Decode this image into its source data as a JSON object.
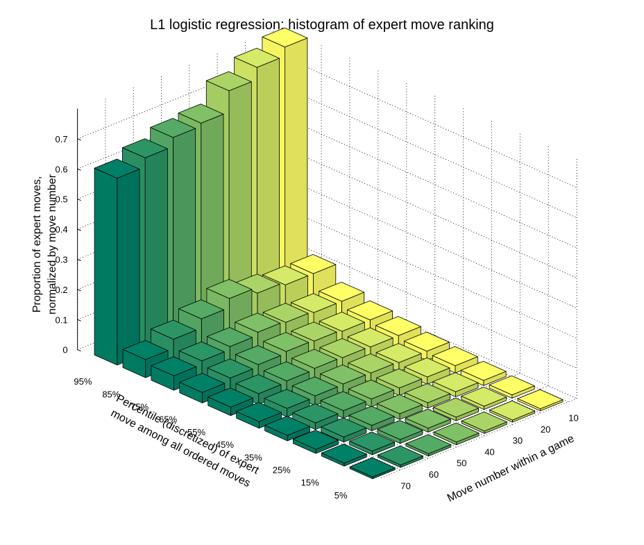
{
  "chart_data": {
    "type": "bar3d",
    "title": "L1 logistic regression: histogram of expert move ranking",
    "zlabel": [
      "Proportion of expert moves,",
      "normalized by move number"
    ],
    "xlabel": [
      "Percentile (discretized) of expert",
      "move among all ordered moves"
    ],
    "ylabel": "Move number within a game",
    "percentile_labels": [
      "95%",
      "85%",
      "75%",
      "65%",
      "55%",
      "45%",
      "35%",
      "25%",
      "15%",
      "5%"
    ],
    "move_number_labels": [
      "10",
      "20",
      "30",
      "40",
      "50",
      "60",
      "70"
    ],
    "zticks": [
      "0",
      "0.1",
      "0.2",
      "0.3",
      "0.4",
      "0.5",
      "0.6",
      "0.7"
    ],
    "zlim": [
      0,
      0.8
    ],
    "grid": true,
    "colormap": "summer",
    "colors": {
      "low": "#ffff66",
      "high": "#008066"
    },
    "move_number_series": [
      "70",
      "60",
      "50",
      "40",
      "30",
      "20",
      "10"
    ],
    "values": [
      [
        0.62,
        0.06,
        0.048,
        0.035,
        0.028,
        0.022,
        0.018,
        0.014,
        0.01,
        0.006
      ],
      [
        0.65,
        0.09,
        0.06,
        0.045,
        0.035,
        0.028,
        0.022,
        0.017,
        0.012,
        0.008
      ],
      [
        0.68,
        0.12,
        0.07,
        0.052,
        0.04,
        0.032,
        0.025,
        0.018,
        0.013,
        0.008
      ],
      [
        0.69,
        0.15,
        0.08,
        0.058,
        0.044,
        0.034,
        0.026,
        0.019,
        0.013,
        0.009
      ],
      [
        0.76,
        0.13,
        0.075,
        0.055,
        0.042,
        0.033,
        0.025,
        0.018,
        0.012,
        0.008
      ],
      [
        0.8,
        0.12,
        0.07,
        0.05,
        0.04,
        0.03,
        0.024,
        0.017,
        0.011,
        0.007
      ],
      [
        0.83,
        0.12,
        0.07,
        0.05,
        0.04,
        0.03,
        0.024,
        0.017,
        0.011,
        0.007
      ]
    ]
  }
}
